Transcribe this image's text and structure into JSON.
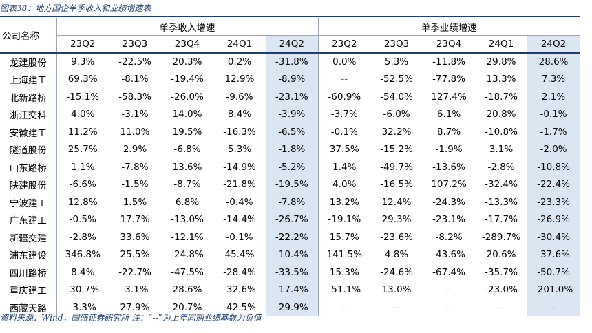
{
  "caption": "图表38：地方国企单季收入和业绩增速表",
  "header": {
    "name_label": "公司名称",
    "group_revenue": "单季收入增速",
    "group_profit": "单季业绩增速",
    "quarters": [
      "23Q2",
      "23Q3",
      "23Q4",
      "24Q1",
      "24Q2"
    ]
  },
  "rows": [
    {
      "name": "龙建股份",
      "rev": [
        "9.3%",
        "-22.5%",
        "20.3%",
        "0.2%",
        "-31.8%"
      ],
      "prof": [
        "0.0%",
        "5.3%",
        "-11.8%",
        "29.8%",
        "28.6%"
      ]
    },
    {
      "name": "上海建工",
      "rev": [
        "69.3%",
        "-8.1%",
        "-19.4%",
        "12.9%",
        "-8.9%"
      ],
      "prof": [
        "--",
        "-52.5%",
        "-77.8%",
        "13.3%",
        "7.3%"
      ]
    },
    {
      "name": "北新路桥",
      "rev": [
        "-15.1%",
        "-58.3%",
        "-26.0%",
        "-9.6%",
        "-23.1%"
      ],
      "prof": [
        "-60.9%",
        "-54.0%",
        "127.4%",
        "-18.7%",
        "2.1%"
      ]
    },
    {
      "name": "浙江交科",
      "rev": [
        "4.0%",
        "-3.1%",
        "14.0%",
        "8.4%",
        "-3.9%"
      ],
      "prof": [
        "-3.7%",
        "-6.0%",
        "6.1%",
        "20.8%",
        "-0.1%"
      ]
    },
    {
      "name": "安徽建工",
      "rev": [
        "11.2%",
        "11.0%",
        "19.5%",
        "-16.3%",
        "-6.5%"
      ],
      "prof": [
        "-0.1%",
        "32.2%",
        "8.7%",
        "-10.8%",
        "-1.7%"
      ]
    },
    {
      "name": "隧道股份",
      "rev": [
        "25.7%",
        "2.9%",
        "-6.8%",
        "5.3%",
        "-1.8%"
      ],
      "prof": [
        "37.5%",
        "-15.2%",
        "-1.9%",
        "3.1%",
        "-2.0%"
      ]
    },
    {
      "name": "山东路桥",
      "rev": [
        "1.1%",
        "-7.8%",
        "13.6%",
        "-14.9%",
        "-5.2%"
      ],
      "prof": [
        "1.4%",
        "-49.7%",
        "-13.6%",
        "-2.8%",
        "-10.8%"
      ]
    },
    {
      "name": "陕建股份",
      "rev": [
        "-6.6%",
        "-1.5%",
        "-8.7%",
        "-21.8%",
        "-19.5%"
      ],
      "prof": [
        "4.0%",
        "-16.5%",
        "107.2%",
        "-32.4%",
        "-22.4%"
      ]
    },
    {
      "name": "宁波建工",
      "rev": [
        "12.8%",
        "1.5%",
        "6.8%",
        "-0.4%",
        "-7.8%"
      ],
      "prof": [
        "13.2%",
        "12.4%",
        "-24.3%",
        "-13.3%",
        "-23.3%"
      ]
    },
    {
      "name": "广东建工",
      "rev": [
        "-0.5%",
        "17.7%",
        "-13.0%",
        "-14.4%",
        "-26.7%"
      ],
      "prof": [
        "-19.1%",
        "29.3%",
        "-23.1%",
        "-17.7%",
        "-26.9%"
      ]
    },
    {
      "name": "新疆交建",
      "rev": [
        "-2.8%",
        "33.6%",
        "-12.1%",
        "-0.1%",
        "-22.2%"
      ],
      "prof": [
        "15.7%",
        "-23.6%",
        "-8.2%",
        "-289.7%",
        "-30.4%"
      ]
    },
    {
      "name": "浦东建设",
      "rev": [
        "346.8%",
        "25.5%",
        "-24.8%",
        "45.4%",
        "-10.4%"
      ],
      "prof": [
        "141.5%",
        "4.8%",
        "-43.6%",
        "20.6%",
        "-37.6%"
      ]
    },
    {
      "name": "四川路桥",
      "rev": [
        "8.4%",
        "-22.7%",
        "-47.5%",
        "-28.4%",
        "-33.5%"
      ],
      "prof": [
        "15.3%",
        "-24.6%",
        "-67.4%",
        "-35.7%",
        "-50.7%"
      ]
    },
    {
      "name": "重庆建工",
      "rev": [
        "-30.7%",
        "-3.1%",
        "28.6%",
        "-32.6%",
        "-17.4%"
      ],
      "prof": [
        "-51.1%",
        "13.0%",
        "--",
        "-23.0%",
        "-201.0%"
      ]
    },
    {
      "name": "西藏天路",
      "rev": [
        "-3.3%",
        "27.9%",
        "20.7%",
        "-42.5%",
        "-29.9%"
      ],
      "prof": [
        "--",
        "--",
        "--",
        "--",
        "--"
      ]
    }
  ],
  "red_cells": [
    {
      "row": 1,
      "col": 0
    }
  ],
  "colors": {
    "accent": "#1f3f6e",
    "highlight": "#dbe6f3",
    "red": "#e03020"
  },
  "source": "资料来源：Wind，国盛证券研究所  注：“--”为上年同期业绩基数为负值"
}
